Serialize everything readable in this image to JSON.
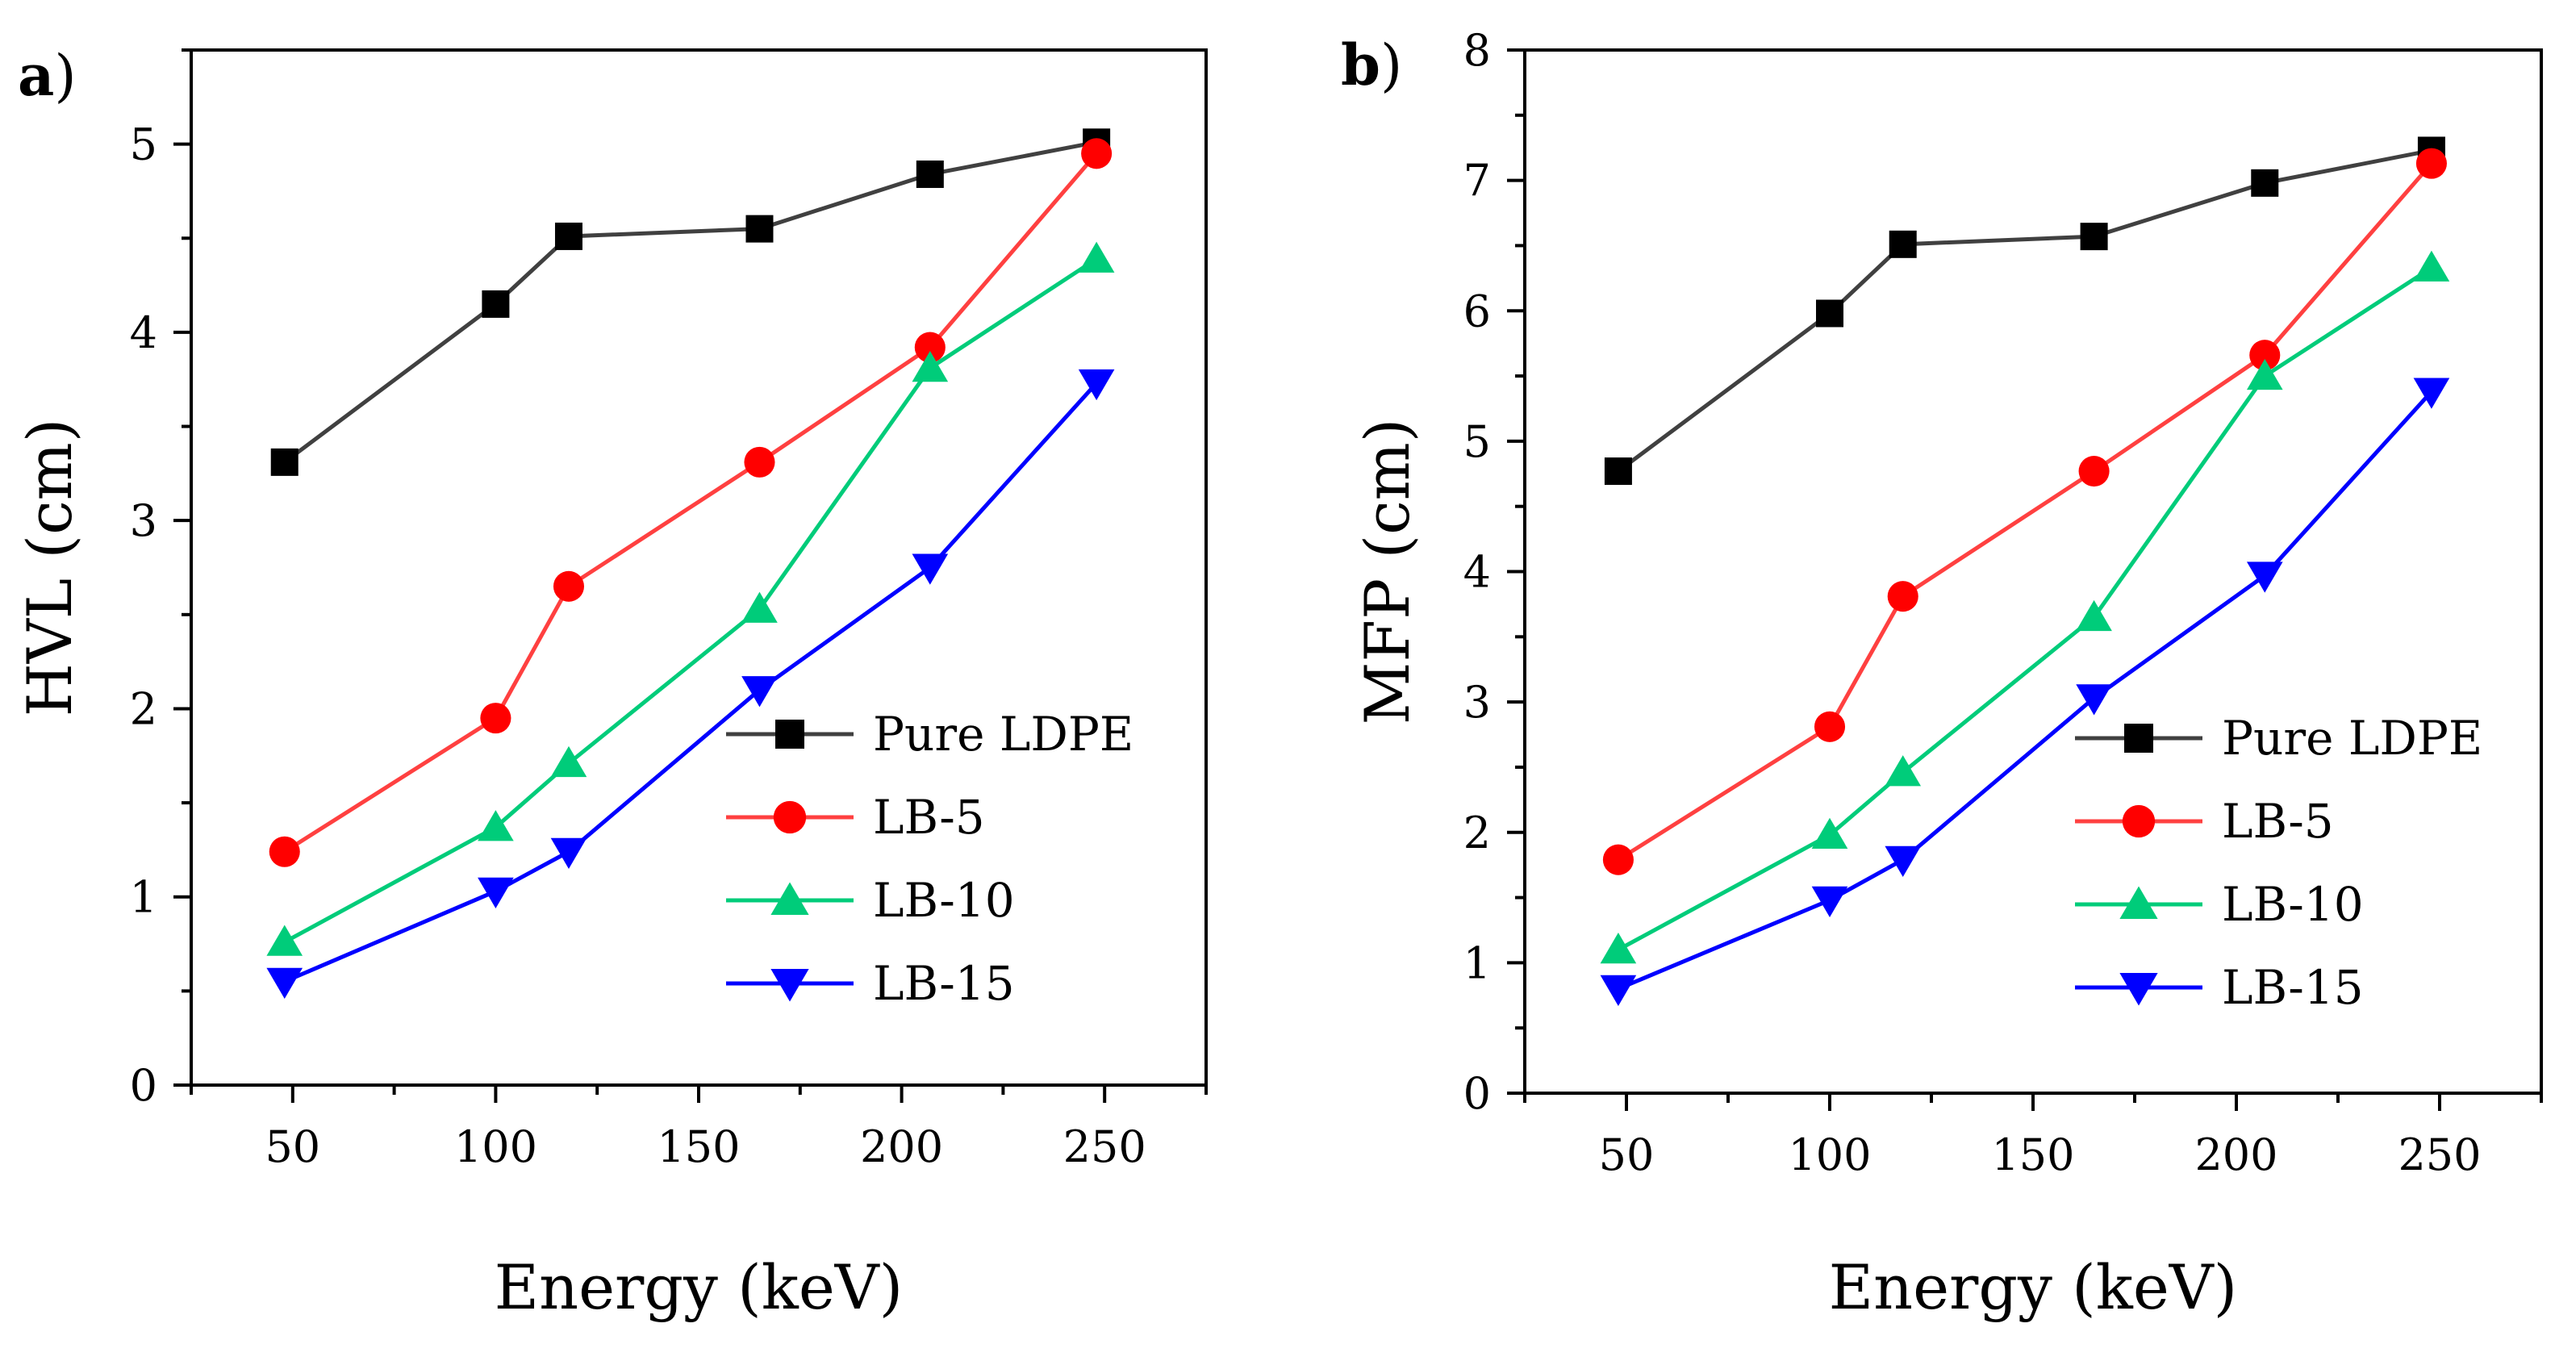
{
  "chart_data": [
    {
      "type": "line",
      "panel_label": "a)",
      "panel_letter": "a",
      "title": "",
      "xlabel": "Energy (keV)",
      "ylabel": "HVL (cm)",
      "xlim": [
        25,
        275
      ],
      "ylim": [
        0,
        5.5
      ],
      "xticks": [
        50,
        100,
        150,
        200,
        250
      ],
      "yticks": [
        0,
        1,
        2,
        3,
        4,
        5
      ],
      "grid": false,
      "legend_position": "bottom-right",
      "x": [
        48,
        100,
        118,
        165,
        207,
        248
      ],
      "series": [
        {
          "name": "Pure LDPE",
          "color": "#000000",
          "line_color": "#404040",
          "marker": "square",
          "values": [
            3.31,
            4.15,
            4.51,
            4.55,
            4.84,
            5.01
          ]
        },
        {
          "name": "LB-5",
          "color": "#ff0000",
          "line_color": "#ff4040",
          "marker": "circle",
          "values": [
            1.24,
            1.95,
            2.65,
            3.31,
            3.92,
            4.95
          ]
        },
        {
          "name": "LB-10",
          "color": "#00cc7a",
          "line_color": "#00cc7a",
          "marker": "triangle-up",
          "values": [
            0.76,
            1.37,
            1.71,
            2.53,
            3.81,
            4.39
          ]
        },
        {
          "name": "LB-15",
          "color": "#0000ff",
          "line_color": "#0000ff",
          "marker": "triangle-down",
          "values": [
            0.55,
            1.03,
            1.24,
            2.1,
            2.75,
            3.73
          ]
        }
      ]
    },
    {
      "type": "line",
      "panel_label": "b)",
      "panel_letter": "b",
      "title": "",
      "xlabel": "Energy (keV)",
      "ylabel": "MFP (cm)",
      "xlim": [
        25,
        275
      ],
      "ylim": [
        0,
        8
      ],
      "xticks": [
        50,
        100,
        150,
        200,
        250
      ],
      "yticks": [
        0,
        1,
        2,
        3,
        4,
        5,
        6,
        7,
        8
      ],
      "grid": false,
      "legend_position": "bottom-right",
      "x": [
        48,
        100,
        118,
        165,
        207,
        248
      ],
      "series": [
        {
          "name": "Pure LDPE",
          "color": "#000000",
          "line_color": "#404040",
          "marker": "square",
          "values": [
            4.77,
            5.98,
            6.51,
            6.57,
            6.98,
            7.23
          ]
        },
        {
          "name": "LB-5",
          "color": "#ff0000",
          "line_color": "#ff4040",
          "marker": "circle",
          "values": [
            1.79,
            2.81,
            3.81,
            4.77,
            5.66,
            7.13
          ]
        },
        {
          "name": "LB-10",
          "color": "#00cc7a",
          "line_color": "#00cc7a",
          "marker": "triangle-up",
          "values": [
            1.1,
            1.98,
            2.46,
            3.65,
            5.5,
            6.33
          ]
        },
        {
          "name": "LB-15",
          "color": "#0000ff",
          "line_color": "#0000ff",
          "marker": "triangle-down",
          "values": [
            0.8,
            1.48,
            1.79,
            3.03,
            3.97,
            5.38
          ]
        }
      ]
    }
  ]
}
